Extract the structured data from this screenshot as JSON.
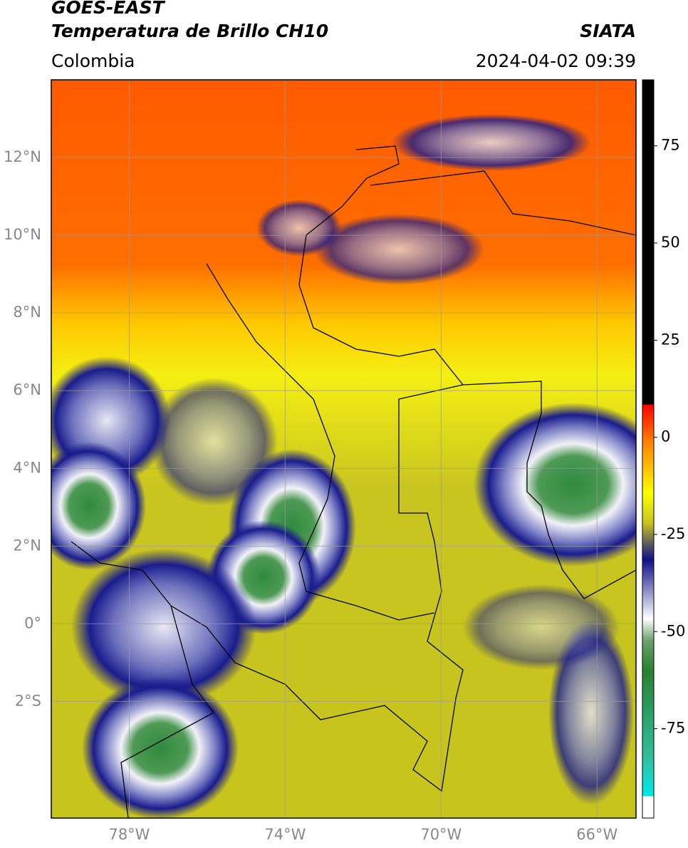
{
  "map": {
    "title": "GOES-EAST",
    "subtitle": "Temperatura de Brillo CH10",
    "source": "SIATA",
    "region": "Colombia",
    "timestamp": "2024-04-02 09:39",
    "grid": true,
    "xlim": [
      -80,
      -65
    ],
    "ylim": [
      -5,
      14
    ],
    "xticks": [
      {
        "value": -78,
        "label": "78°W"
      },
      {
        "value": -74,
        "label": "74°W"
      },
      {
        "value": -70,
        "label": "70°W"
      },
      {
        "value": -66,
        "label": "66°W"
      }
    ],
    "yticks": [
      {
        "value": 12,
        "label": "12°N"
      },
      {
        "value": 10,
        "label": "10°N"
      },
      {
        "value": 8,
        "label": "8°N"
      },
      {
        "value": 6,
        "label": "6°N"
      },
      {
        "value": 4,
        "label": "4°N"
      },
      {
        "value": 2,
        "label": "2°N"
      },
      {
        "value": 0,
        "label": "0°"
      },
      {
        "value": -2,
        "label": "2°S"
      }
    ],
    "colorbar": {
      "lim": [
        -98,
        92
      ],
      "ticks": [
        75,
        50,
        25,
        0,
        -25,
        -50,
        -75
      ]
    }
  }
}
